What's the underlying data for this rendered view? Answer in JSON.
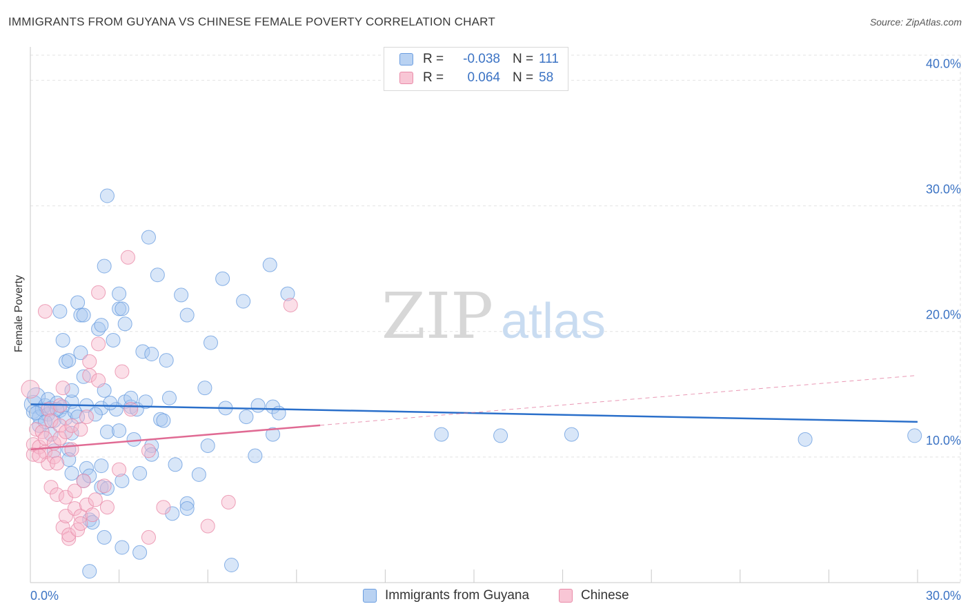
{
  "header": {
    "title": "IMMIGRANTS FROM GUYANA VS CHINESE FEMALE POVERTY CORRELATION CHART",
    "source": "Source: ZipAtlas.com"
  },
  "watermark": {
    "zip": "ZIP",
    "atlas": "atlas"
  },
  "legend": {
    "series1": {
      "r_label": "R =",
      "r_value": "-0.038",
      "n_label": "N =",
      "n_value": "111"
    },
    "series2": {
      "r_label": "R =",
      "r_value": "0.064",
      "n_label": "N =",
      "n_value": "58"
    }
  },
  "bottom_legend": {
    "series1": "Immigrants from Guyana",
    "series2": "Chinese"
  },
  "colors": {
    "blue_fill": "#a9c8ef",
    "blue_stroke": "#6a9de0",
    "blue_line": "#2a6fca",
    "pink_fill": "#f6b8cb",
    "pink_stroke": "#e98aa8",
    "pink_line": "#e06a93",
    "axis_text": "#3b73c4",
    "grid": "#e2e2e2"
  },
  "chart_data": {
    "type": "scatter",
    "title": "IMMIGRANTS FROM GUYANA VS CHINESE FEMALE POVERTY CORRELATION CHART",
    "xlabel": "",
    "ylabel": "Female Poverty",
    "xlim": [
      0,
      30
    ],
    "ylim": [
      0,
      42
    ],
    "x_tick_labels": [
      "0.0%",
      "30.0%"
    ],
    "y_ticks": [
      10,
      20,
      30,
      40
    ],
    "y_tick_labels": [
      "10.0%",
      "20.0%",
      "30.0%",
      "40.0%"
    ],
    "grid": true,
    "legend_position": "top-center",
    "series": [
      {
        "name": "Immigrants from Guyana",
        "r": -0.038,
        "n": 111,
        "trend": {
          "x": [
            0,
            30
          ],
          "y": [
            14.2,
            12.8
          ],
          "solid_to": 30
        },
        "points": [
          [
            0.1,
            14.2
          ],
          [
            0.1,
            13.6
          ],
          [
            0.2,
            14.8
          ],
          [
            0.3,
            13.2
          ],
          [
            0.3,
            12.5
          ],
          [
            0.4,
            13.8
          ],
          [
            0.5,
            14.1
          ],
          [
            0.6,
            13.4
          ],
          [
            0.6,
            14.6
          ],
          [
            0.7,
            13.9
          ],
          [
            0.8,
            12.9
          ],
          [
            0.9,
            14.3
          ],
          [
            1.0,
            13.7
          ],
          [
            1.1,
            14.0
          ],
          [
            0.7,
            11.8
          ],
          [
            0.8,
            10.5
          ],
          [
            1.2,
            13.1
          ],
          [
            1.4,
            14.4
          ],
          [
            1.5,
            13.6
          ],
          [
            1.0,
            21.6
          ],
          [
            1.1,
            19.3
          ],
          [
            1.2,
            17.6
          ],
          [
            1.3,
            17.7
          ],
          [
            1.4,
            15.3
          ],
          [
            1.4,
            11.9
          ],
          [
            1.3,
            10.6
          ],
          [
            1.3,
            9.8
          ],
          [
            1.4,
            8.7
          ],
          [
            1.6,
            22.3
          ],
          [
            1.7,
            21.3
          ],
          [
            1.8,
            21.3
          ],
          [
            1.7,
            18.3
          ],
          [
            1.8,
            16.4
          ],
          [
            1.9,
            14.1
          ],
          [
            1.9,
            9.1
          ],
          [
            1.8,
            8.1
          ],
          [
            2.0,
            8.5
          ],
          [
            2.0,
            5.0
          ],
          [
            2.1,
            4.8
          ],
          [
            2.0,
            0.9
          ],
          [
            2.3,
            20.2
          ],
          [
            2.4,
            20.5
          ],
          [
            2.5,
            25.2
          ],
          [
            2.5,
            15.3
          ],
          [
            2.4,
            13.9
          ],
          [
            2.6,
            12.0
          ],
          [
            2.4,
            9.3
          ],
          [
            2.4,
            7.6
          ],
          [
            2.5,
            3.6
          ],
          [
            2.6,
            7.5
          ],
          [
            2.6,
            30.8
          ],
          [
            2.8,
            19.3
          ],
          [
            2.9,
            13.8
          ],
          [
            3.0,
            23.0
          ],
          [
            3.0,
            21.8
          ],
          [
            3.1,
            21.8
          ],
          [
            3.2,
            20.6
          ],
          [
            3.0,
            12.1
          ],
          [
            3.1,
            8.1
          ],
          [
            3.1,
            2.8
          ],
          [
            3.2,
            14.4
          ],
          [
            3.4,
            14.0
          ],
          [
            3.4,
            14.7
          ],
          [
            3.6,
            13.8
          ],
          [
            3.5,
            11.4
          ],
          [
            3.7,
            8.7
          ],
          [
            3.7,
            2.4
          ],
          [
            3.8,
            18.4
          ],
          [
            3.9,
            14.4
          ],
          [
            4.0,
            27.5
          ],
          [
            4.1,
            18.2
          ],
          [
            4.1,
            10.9
          ],
          [
            4.1,
            10.2
          ],
          [
            4.3,
            24.5
          ],
          [
            4.4,
            13.0
          ],
          [
            4.5,
            12.9
          ],
          [
            4.6,
            17.7
          ],
          [
            4.7,
            14.7
          ],
          [
            4.8,
            5.5
          ],
          [
            4.9,
            9.4
          ],
          [
            5.1,
            22.9
          ],
          [
            5.3,
            21.3
          ],
          [
            5.3,
            6.3
          ],
          [
            5.3,
            5.9
          ],
          [
            5.7,
            8.6
          ],
          [
            5.9,
            15.5
          ],
          [
            6.1,
            19.1
          ],
          [
            6.0,
            10.9
          ],
          [
            6.5,
            24.2
          ],
          [
            6.6,
            13.9
          ],
          [
            6.8,
            1.4
          ],
          [
            7.2,
            22.4
          ],
          [
            7.3,
            13.2
          ],
          [
            7.6,
            10.1
          ],
          [
            7.7,
            14.1
          ],
          [
            8.1,
            25.3
          ],
          [
            8.2,
            14.0
          ],
          [
            8.2,
            11.8
          ],
          [
            8.4,
            13.5
          ],
          [
            8.7,
            23.0
          ],
          [
            13.9,
            11.8
          ],
          [
            15.9,
            11.7
          ],
          [
            18.3,
            11.8
          ],
          [
            26.2,
            11.4
          ],
          [
            29.9,
            11.7
          ],
          [
            0.2,
            13.5
          ],
          [
            0.5,
            12.8
          ],
          [
            0.9,
            13.8
          ],
          [
            1.6,
            13.2
          ],
          [
            2.2,
            13.4
          ],
          [
            2.7,
            14.3
          ]
        ]
      },
      {
        "name": "Chinese",
        "r": 0.064,
        "n": 58,
        "trend": {
          "x": [
            0,
            30
          ],
          "y": [
            10.6,
            16.5
          ],
          "solid_to": 9.8
        },
        "points": [
          [
            0.0,
            15.4
          ],
          [
            0.1,
            11.0
          ],
          [
            0.1,
            10.2
          ],
          [
            0.2,
            12.2
          ],
          [
            0.3,
            10.8
          ],
          [
            0.4,
            12.0
          ],
          [
            0.5,
            11.5
          ],
          [
            0.5,
            10.4
          ],
          [
            0.5,
            21.6
          ],
          [
            0.6,
            13.8
          ],
          [
            0.6,
            9.5
          ],
          [
            0.7,
            12.9
          ],
          [
            0.7,
            7.6
          ],
          [
            0.8,
            11.1
          ],
          [
            0.8,
            10.0
          ],
          [
            0.9,
            7.0
          ],
          [
            0.9,
            9.5
          ],
          [
            1.0,
            14.1
          ],
          [
            1.0,
            12.5
          ],
          [
            1.0,
            11.5
          ],
          [
            1.1,
            4.4
          ],
          [
            1.1,
            15.5
          ],
          [
            1.2,
            12.0
          ],
          [
            1.2,
            6.8
          ],
          [
            1.2,
            5.3
          ],
          [
            1.3,
            3.5
          ],
          [
            1.3,
            3.8
          ],
          [
            1.4,
            12.5
          ],
          [
            1.4,
            10.6
          ],
          [
            1.5,
            7.3
          ],
          [
            1.5,
            5.9
          ],
          [
            1.6,
            4.2
          ],
          [
            1.7,
            12.2
          ],
          [
            1.7,
            5.3
          ],
          [
            1.7,
            4.7
          ],
          [
            1.8,
            8.1
          ],
          [
            1.9,
            6.2
          ],
          [
            1.9,
            13.2
          ],
          [
            2.0,
            16.5
          ],
          [
            2.0,
            17.6
          ],
          [
            2.1,
            5.4
          ],
          [
            2.2,
            6.6
          ],
          [
            2.3,
            23.1
          ],
          [
            2.3,
            19.0
          ],
          [
            2.3,
            16.1
          ],
          [
            2.5,
            7.7
          ],
          [
            2.6,
            6.0
          ],
          [
            3.0,
            9.0
          ],
          [
            3.1,
            16.8
          ],
          [
            3.3,
            25.9
          ],
          [
            3.4,
            13.8
          ],
          [
            4.0,
            3.6
          ],
          [
            4.0,
            10.5
          ],
          [
            4.5,
            6.0
          ],
          [
            6.0,
            4.5
          ],
          [
            6.7,
            6.4
          ],
          [
            8.8,
            22.1
          ],
          [
            0.3,
            10.1
          ]
        ]
      }
    ]
  }
}
